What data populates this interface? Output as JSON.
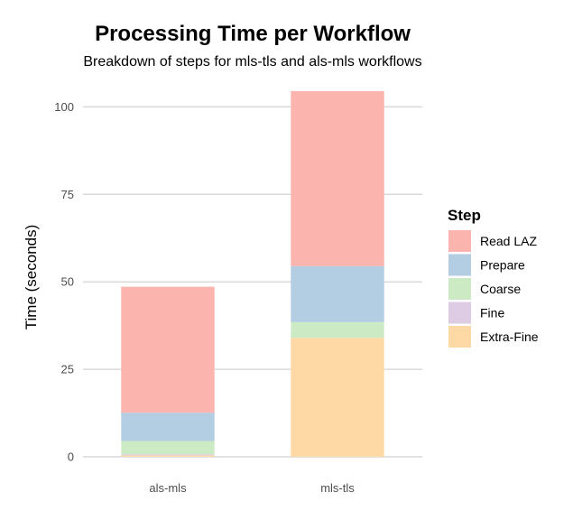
{
  "chart_data": {
    "type": "bar",
    "stacked": true,
    "title": "Processing Time per Workflow",
    "subtitle": "Breakdown of steps for mls-tls and als-mls workflows",
    "xlabel": "",
    "ylabel": "Time (seconds)",
    "ylim": [
      0,
      105
    ],
    "yticks": [
      0,
      25,
      50,
      75,
      100
    ],
    "grid": true,
    "legend_position": "right",
    "legend_title": "Step",
    "categories": [
      "als-mls",
      "mls-tls"
    ],
    "series": [
      {
        "name": "Read LAZ",
        "color": "#FBB4AE",
        "values": [
          36.0,
          50.0
        ]
      },
      {
        "name": "Prepare",
        "color": "#B3CDE3",
        "values": [
          8.1,
          16.0
        ]
      },
      {
        "name": "Coarse",
        "color": "#CCEBC5",
        "values": [
          3.8,
          4.5
        ]
      },
      {
        "name": "Fine",
        "color": "#DECBE4",
        "values": [
          0.3,
          0.0
        ]
      },
      {
        "name": "Extra-Fine",
        "color": "#FED9A6",
        "values": [
          0.4,
          34.0
        ]
      }
    ]
  }
}
